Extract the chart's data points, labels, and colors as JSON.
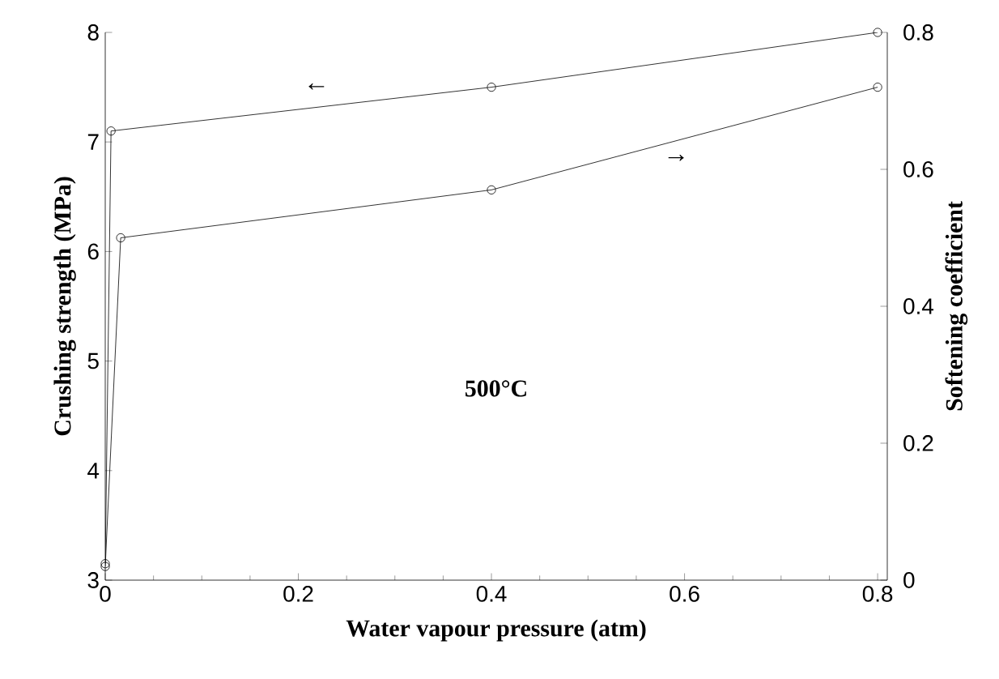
{
  "chart_data": {
    "type": "line",
    "xlabel": "Water vapour pressure (atm)",
    "ylabel": "Crushing strength (MPa)",
    "y2label": "Softening coefficient",
    "xlim": [
      0,
      0.81
    ],
    "xticks": [
      0,
      0.2,
      0.4,
      0.6,
      0.8
    ],
    "ylim": [
      3,
      8
    ],
    "yticks": [
      3,
      4,
      5,
      6,
      7,
      8
    ],
    "y2lim": [
      0,
      0.8
    ],
    "y2ticks": [
      0,
      0.2,
      0.4,
      0.6,
      0.8
    ],
    "marker": "circle",
    "line_style": "solid",
    "grid": false,
    "series": [
      {
        "color": "#000000",
        "x": [
          0,
          0.006,
          0.4,
          0.8
        ],
        "values": [
          3.15,
          7.1,
          7.5,
          8.0
        ]
      },
      {
        "color": "#000000",
        "axis": "y2",
        "x": [
          0,
          0.016,
          0.4,
          0.8
        ],
        "values": [
          0.02,
          0.5,
          0.57,
          0.72
        ]
      }
    ],
    "annotations": [
      "←",
      "→",
      "500°C"
    ]
  }
}
